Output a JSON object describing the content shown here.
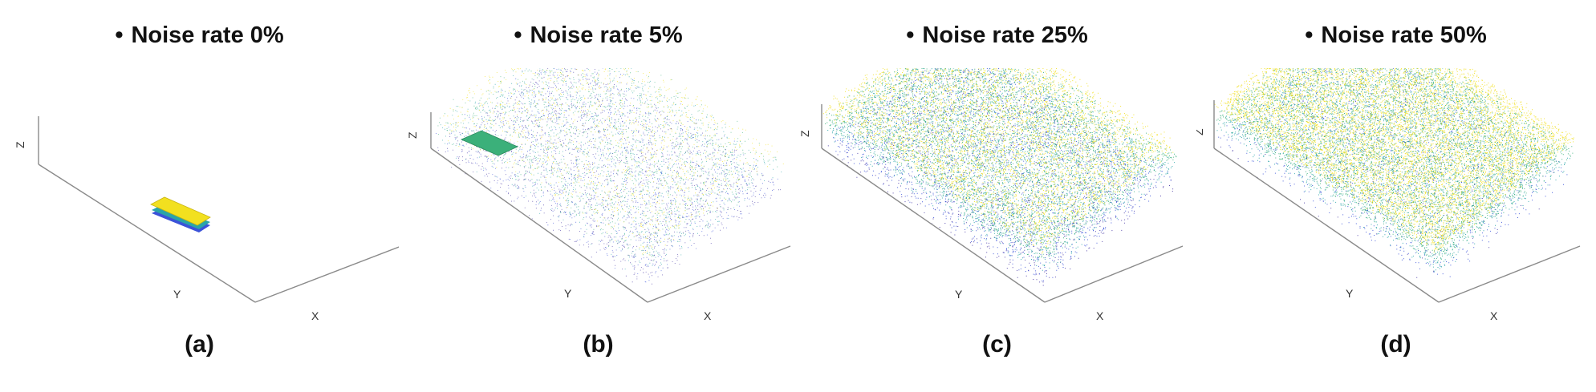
{
  "figure": {
    "panels": [
      {
        "id": "a",
        "bullet": "•",
        "title": "Noise rate 0%",
        "caption": "(a)",
        "noise_rate": 0,
        "axis_labels": {
          "z": "Z",
          "y": "Y",
          "x": "X"
        }
      },
      {
        "id": "b",
        "bullet": "•",
        "title": "Noise rate 5%",
        "caption": "(b)",
        "noise_rate": 5,
        "axis_labels": {
          "z": "Z",
          "y": "Y",
          "x": "X"
        }
      },
      {
        "id": "c",
        "bullet": "•",
        "title": "Noise rate 25%",
        "caption": "(c)",
        "noise_rate": 25,
        "axis_labels": {
          "z": "Z",
          "y": "Y",
          "x": "X"
        }
      },
      {
        "id": "d",
        "bullet": "•",
        "title": "Noise rate 50%",
        "caption": "(d)",
        "noise_rate": 50,
        "axis_labels": {
          "z": "Z",
          "y": "Y",
          "x": "X"
        }
      }
    ],
    "colors": {
      "axis": "#8a8a8a",
      "yellow": "#f2e01f",
      "green": "#3bb07a",
      "teal": "#2aa4a8",
      "blue": "#3b52d9",
      "violet": "#4a3aa6"
    }
  }
}
